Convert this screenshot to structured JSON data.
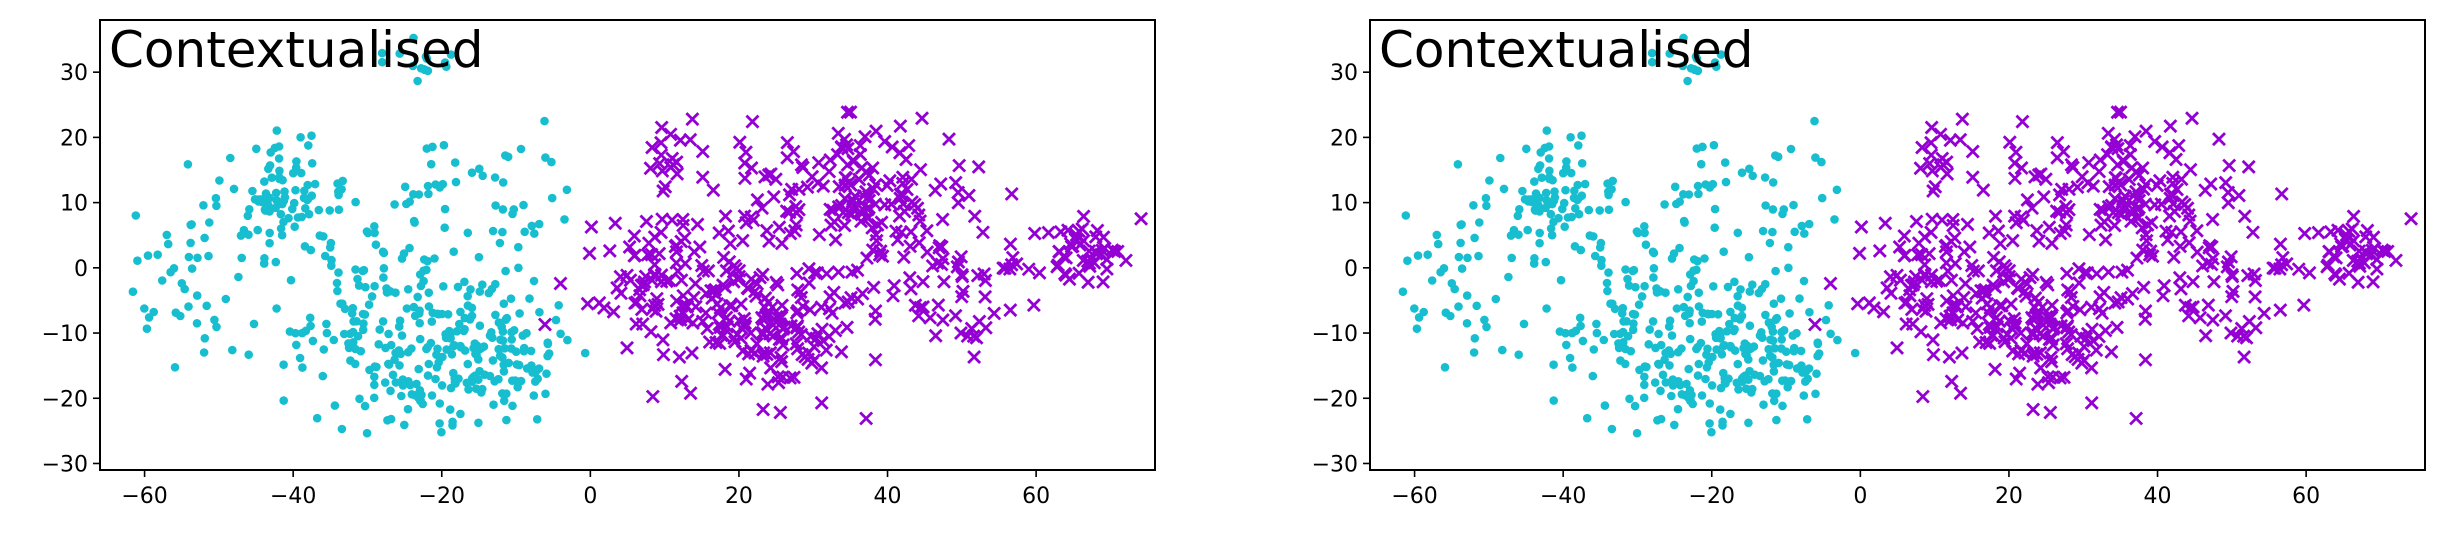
{
  "chart_data": [
    {
      "type": "scatter",
      "title": "Contextualised",
      "xlabel": "",
      "ylabel": "",
      "xlim": [
        -66,
        76
      ],
      "ylim": [
        -31,
        38
      ],
      "xticks": [
        -60,
        -40,
        -20,
        0,
        20,
        40,
        60
      ],
      "xtick_labels": [
        "−60",
        "−40",
        "−20",
        "0",
        "20",
        "40",
        "60"
      ],
      "yticks": [
        -30,
        -20,
        -10,
        0,
        10,
        20,
        30
      ],
      "ytick_labels": [
        "−30",
        "−20",
        "−10",
        "0",
        "10",
        "20",
        "30"
      ],
      "grid": false,
      "series": [
        {
          "marker": "dot",
          "color": "#17becf",
          "clusters": [
            {
              "cx": -42,
              "cy": 9,
              "sx": 4,
              "sy": 5,
              "n": 90
            },
            {
              "cx": -30,
              "cy": -6,
              "sx": 7,
              "sy": 6,
              "n": 120
            },
            {
              "cx": -14,
              "cy": -12,
              "sx": 5,
              "sy": 5,
              "n": 130
            },
            {
              "cx": -24,
              "cy": -18,
              "sx": 6,
              "sy": 4,
              "n": 60
            },
            {
              "cx": -55,
              "cy": -2,
              "sx": 4,
              "sy": 7,
              "n": 40
            },
            {
              "cx": -22,
              "cy": 31,
              "sx": 3,
              "sy": 2,
              "n": 15
            },
            {
              "cx": -19,
              "cy": 10,
              "sx": 6,
              "sy": 6,
              "n": 35
            },
            {
              "cx": -8,
              "cy": 8,
              "sx": 4,
              "sy": 8,
              "n": 20
            }
          ]
        },
        {
          "marker": "x",
          "color": "#9400d3",
          "clusters": [
            {
              "cx": 18,
              "cy": -6,
              "sx": 8,
              "sy": 6,
              "n": 160
            },
            {
              "cx": 38,
              "cy": 10,
              "sx": 8,
              "sy": 5,
              "n": 120
            },
            {
              "cx": 27,
              "cy": -11,
              "sx": 5,
              "sy": 4,
              "n": 60
            },
            {
              "cx": 66,
              "cy": 3,
              "sx": 3,
              "sy": 2.5,
              "n": 50
            },
            {
              "cx": 47,
              "cy": -3,
              "sx": 7,
              "sy": 6,
              "n": 60
            },
            {
              "cx": 10,
              "cy": 17,
              "sx": 3,
              "sy": 3,
              "n": 20
            },
            {
              "cx": 30,
              "cy": 15,
              "sx": 8,
              "sy": 5,
              "n": 40
            },
            {
              "cx": 8,
              "cy": 2,
              "sx": 4,
              "sy": 6,
              "n": 40
            }
          ]
        }
      ]
    },
    {
      "type": "scatter",
      "title": "Contextualised",
      "xlabel": "",
      "ylabel": "",
      "xlim": [
        -66,
        76
      ],
      "ylim": [
        -31,
        38
      ],
      "xticks": [
        -60,
        -40,
        -20,
        0,
        20,
        40,
        60
      ],
      "xtick_labels": [
        "−60",
        "−40",
        "−20",
        "0",
        "20",
        "40",
        "60"
      ],
      "yticks": [
        -30,
        -20,
        -10,
        0,
        10,
        20,
        30
      ],
      "ytick_labels": [
        "−30",
        "−20",
        "−10",
        "0",
        "10",
        "20",
        "30"
      ],
      "grid": false,
      "series": [
        {
          "marker": "dot",
          "color": "#17becf",
          "clusters": [
            {
              "cx": -42,
              "cy": 9,
              "sx": 4,
              "sy": 5,
              "n": 90
            },
            {
              "cx": -30,
              "cy": -6,
              "sx": 7,
              "sy": 6,
              "n": 120
            },
            {
              "cx": -14,
              "cy": -12,
              "sx": 5,
              "sy": 5,
              "n": 130
            },
            {
              "cx": -24,
              "cy": -18,
              "sx": 6,
              "sy": 4,
              "n": 60
            },
            {
              "cx": -55,
              "cy": -2,
              "sx": 4,
              "sy": 7,
              "n": 40
            },
            {
              "cx": -22,
              "cy": 31,
              "sx": 3,
              "sy": 2,
              "n": 15
            },
            {
              "cx": -19,
              "cy": 10,
              "sx": 6,
              "sy": 6,
              "n": 35
            },
            {
              "cx": -8,
              "cy": 8,
              "sx": 4,
              "sy": 8,
              "n": 20
            }
          ]
        },
        {
          "marker": "x",
          "color": "#9400d3",
          "clusters": [
            {
              "cx": 18,
              "cy": -6,
              "sx": 8,
              "sy": 6,
              "n": 160
            },
            {
              "cx": 38,
              "cy": 10,
              "sx": 8,
              "sy": 5,
              "n": 120
            },
            {
              "cx": 27,
              "cy": -11,
              "sx": 5,
              "sy": 4,
              "n": 60
            },
            {
              "cx": 66,
              "cy": 3,
              "sx": 3,
              "sy": 2.5,
              "n": 50
            },
            {
              "cx": 47,
              "cy": -3,
              "sx": 7,
              "sy": 6,
              "n": 60
            },
            {
              "cx": 10,
              "cy": 17,
              "sx": 3,
              "sy": 3,
              "n": 20
            },
            {
              "cx": 30,
              "cy": 15,
              "sx": 8,
              "sy": 5,
              "n": 40
            },
            {
              "cx": 8,
              "cy": 2,
              "sx": 4,
              "sy": 6,
              "n": 40
            }
          ]
        }
      ]
    }
  ]
}
